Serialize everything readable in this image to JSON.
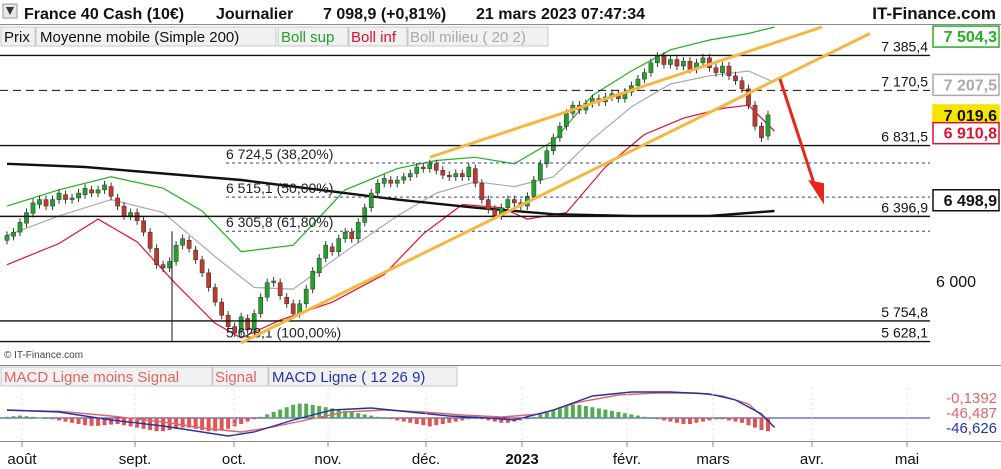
{
  "header": {
    "instrument": "France 40 Cash (10€)",
    "period": "Journalier",
    "quote": "7 098,9 (+0,81%)",
    "datetime": "21 mars 2023 07:47:34",
    "brand": "IT-Finance.com"
  },
  "legend": {
    "price": "Prix",
    "ma": "Moyenne mobile (Simple 200)",
    "boll_sup": "Boll sup",
    "boll_inf": "Boll inf",
    "boll_mid": "Boll milieu ( 20 2)"
  },
  "copyright": "© IT-Finance.com",
  "macd_legend": {
    "histogram": "MACD Ligne moins Signal",
    "signal": "Signal",
    "line": "MACD Ligne ( 12 26 9)"
  },
  "colors": {
    "candle_up": "#22a22a",
    "candle_down": "#c0392b",
    "ma200": "#111111",
    "boll_sup": "#22b022",
    "boll_inf": "#e01030",
    "boll_mid": "#aaaaaa",
    "trend_channel": "#f5b642",
    "arrow": "#e8261a",
    "macd_line": "#2233aa",
    "macd_signal": "#e06666"
  },
  "chart_data": {
    "type": "candlestick",
    "x_axis_labels": [
      "août",
      "sept.",
      "oct.",
      "nov.",
      "déc.",
      "2023",
      "févr.",
      "mars",
      "avr.",
      "mai"
    ],
    "y_axis": {
      "ticks": [
        "6 000"
      ],
      "range": [
        5570,
        7560
      ]
    },
    "price_levels": [
      {
        "value": 7385.4,
        "label": "7 385,4",
        "style": "solid"
      },
      {
        "value": 7170.5,
        "label": "7 170,5",
        "style": "dashed"
      },
      {
        "value": 6831.5,
        "label": "6 831,5",
        "style": "solid"
      },
      {
        "value": 6396.9,
        "label": "6 396,9",
        "style": "solid"
      },
      {
        "value": 5754.8,
        "label": "5 754,8",
        "style": "solid"
      },
      {
        "value": 5628.1,
        "label": "5 628,1",
        "style": "solid"
      }
    ],
    "fibonacci": [
      {
        "value": 6724.5,
        "label": "6 724,5 (38,20%)"
      },
      {
        "value": 6515.1,
        "label": "6 515,1 (50,00%)"
      },
      {
        "value": 6305.8,
        "label": "6 305,8 (61,80%)"
      },
      {
        "value": 5628.1,
        "label": "5 628,1 (100,00%)"
      }
    ],
    "right_boxes": [
      {
        "value": 7504.3,
        "label": "7 504,3",
        "series": "Boll sup"
      },
      {
        "value": 7207.5,
        "label": "7 207,5",
        "series": "Boll milieu"
      },
      {
        "value": 7019.6,
        "label": "7 019,6",
        "series": "Prix"
      },
      {
        "value": 6910.8,
        "label": "6 910,8",
        "series": "Boll inf"
      },
      {
        "value": 6498.9,
        "label": "6 498,9",
        "series": "Moyenne mobile"
      }
    ],
    "macd_boxes": [
      {
        "label": "-0,1392",
        "series": "MACD Ligne moins Signal"
      },
      {
        "label": "-46,487",
        "series": "Signal"
      },
      {
        "label": "-46,626",
        "series": "MACD Ligne"
      }
    ],
    "candles": [
      {
        "o": 6250,
        "c": 6280
      },
      {
        "o": 6275,
        "c": 6300
      },
      {
        "o": 6300,
        "c": 6360
      },
      {
        "o": 6355,
        "c": 6420
      },
      {
        "o": 6415,
        "c": 6480
      },
      {
        "o": 6470,
        "c": 6500
      },
      {
        "o": 6500,
        "c": 6460
      },
      {
        "o": 6460,
        "c": 6500
      },
      {
        "o": 6500,
        "c": 6540
      },
      {
        "o": 6530,
        "c": 6500
      },
      {
        "o": 6500,
        "c": 6510
      },
      {
        "o": 6510,
        "c": 6540
      },
      {
        "o": 6530,
        "c": 6570
      },
      {
        "o": 6560,
        "c": 6540
      },
      {
        "o": 6540,
        "c": 6560
      },
      {
        "o": 6560,
        "c": 6590
      },
      {
        "o": 6580,
        "c": 6520
      },
      {
        "o": 6510,
        "c": 6460
      },
      {
        "o": 6460,
        "c": 6400
      },
      {
        "o": 6400,
        "c": 6420
      },
      {
        "o": 6420,
        "c": 6370
      },
      {
        "o": 6370,
        "c": 6300
      },
      {
        "o": 6300,
        "c": 6200
      },
      {
        "o": 6200,
        "c": 6100
      },
      {
        "o": 6100,
        "c": 6080
      },
      {
        "o": 6080,
        "c": 6120
      },
      {
        "o": 6120,
        "c": 6220
      },
      {
        "o": 6220,
        "c": 6260
      },
      {
        "o": 6250,
        "c": 6200
      },
      {
        "o": 6190,
        "c": 6130
      },
      {
        "o": 6130,
        "c": 6050
      },
      {
        "o": 6050,
        "c": 5960
      },
      {
        "o": 5960,
        "c": 5870
      },
      {
        "o": 5870,
        "c": 5790
      },
      {
        "o": 5790,
        "c": 5720
      },
      {
        "o": 5720,
        "c": 5680
      },
      {
        "o": 5690,
        "c": 5780
      },
      {
        "o": 5770,
        "c": 5700
      },
      {
        "o": 5700,
        "c": 5800
      },
      {
        "o": 5800,
        "c": 5900
      },
      {
        "o": 5900,
        "c": 5990
      },
      {
        "o": 5990,
        "c": 6000
      },
      {
        "o": 5990,
        "c": 5910
      },
      {
        "o": 5900,
        "c": 5860
      },
      {
        "o": 5860,
        "c": 5800
      },
      {
        "o": 5800,
        "c": 5860
      },
      {
        "o": 5860,
        "c": 5950
      },
      {
        "o": 5950,
        "c": 6060
      },
      {
        "o": 6050,
        "c": 6140
      },
      {
        "o": 6140,
        "c": 6220
      },
      {
        "o": 6210,
        "c": 6180
      },
      {
        "o": 6180,
        "c": 6260
      },
      {
        "o": 6260,
        "c": 6300
      },
      {
        "o": 6300,
        "c": 6260
      },
      {
        "o": 6260,
        "c": 6360
      },
      {
        "o": 6360,
        "c": 6450
      },
      {
        "o": 6450,
        "c": 6540
      },
      {
        "o": 6540,
        "c": 6600
      },
      {
        "o": 6600,
        "c": 6630
      },
      {
        "o": 6620,
        "c": 6600
      },
      {
        "o": 6600,
        "c": 6620
      },
      {
        "o": 6620,
        "c": 6640
      },
      {
        "o": 6640,
        "c": 6660
      },
      {
        "o": 6660,
        "c": 6700
      },
      {
        "o": 6700,
        "c": 6690
      },
      {
        "o": 6690,
        "c": 6720
      },
      {
        "o": 6720,
        "c": 6680
      },
      {
        "o": 6680,
        "c": 6650
      },
      {
        "o": 6650,
        "c": 6640
      },
      {
        "o": 6640,
        "c": 6660
      },
      {
        "o": 6660,
        "c": 6640
      },
      {
        "o": 6640,
        "c": 6700
      },
      {
        "o": 6690,
        "c": 6600
      },
      {
        "o": 6600,
        "c": 6500
      },
      {
        "o": 6500,
        "c": 6440
      },
      {
        "o": 6440,
        "c": 6400
      },
      {
        "o": 6400,
        "c": 6450
      },
      {
        "o": 6450,
        "c": 6500
      },
      {
        "o": 6500,
        "c": 6480
      },
      {
        "o": 6480,
        "c": 6460
      },
      {
        "o": 6460,
        "c": 6520
      },
      {
        "o": 6520,
        "c": 6620
      },
      {
        "o": 6620,
        "c": 6720
      },
      {
        "o": 6720,
        "c": 6800
      },
      {
        "o": 6800,
        "c": 6880
      },
      {
        "o": 6880,
        "c": 6950
      },
      {
        "o": 6950,
        "c": 7030
      },
      {
        "o": 7030,
        "c": 7080
      },
      {
        "o": 7080,
        "c": 7050
      },
      {
        "o": 7050,
        "c": 7090
      },
      {
        "o": 7090,
        "c": 7120
      },
      {
        "o": 7120,
        "c": 7100
      },
      {
        "o": 7100,
        "c": 7130
      },
      {
        "o": 7130,
        "c": 7150
      },
      {
        "o": 7150,
        "c": 7120
      },
      {
        "o": 7120,
        "c": 7160
      },
      {
        "o": 7160,
        "c": 7200
      },
      {
        "o": 7200,
        "c": 7240
      },
      {
        "o": 7240,
        "c": 7280
      },
      {
        "o": 7280,
        "c": 7340
      },
      {
        "o": 7340,
        "c": 7380
      },
      {
        "o": 7380,
        "c": 7330
      },
      {
        "o": 7330,
        "c": 7360
      },
      {
        "o": 7360,
        "c": 7320
      },
      {
        "o": 7320,
        "c": 7350
      },
      {
        "o": 7350,
        "c": 7300
      },
      {
        "o": 7300,
        "c": 7340
      },
      {
        "o": 7340,
        "c": 7370
      },
      {
        "o": 7370,
        "c": 7310
      },
      {
        "o": 7310,
        "c": 7280
      },
      {
        "o": 7280,
        "c": 7320
      },
      {
        "o": 7320,
        "c": 7260
      },
      {
        "o": 7260,
        "c": 7230
      },
      {
        "o": 7230,
        "c": 7180
      },
      {
        "o": 7180,
        "c": 7080
      },
      {
        "o": 7080,
        "c": 6950
      },
      {
        "o": 6950,
        "c": 6880
      },
      {
        "o": 6890,
        "c": 7020
      }
    ],
    "ma200": [
      [
        0,
        6720
      ],
      [
        12,
        6700
      ],
      [
        24,
        6660
      ],
      [
        36,
        6620
      ],
      [
        48,
        6560
      ],
      [
        60,
        6500
      ],
      [
        72,
        6450
      ],
      [
        84,
        6410
      ],
      [
        96,
        6400
      ],
      [
        108,
        6400
      ],
      [
        118,
        6430
      ]
    ],
    "boll_sup": [
      [
        0,
        6460
      ],
      [
        8,
        6560
      ],
      [
        16,
        6640
      ],
      [
        24,
        6570
      ],
      [
        30,
        6430
      ],
      [
        36,
        6180
      ],
      [
        44,
        6220
      ],
      [
        52,
        6560
      ],
      [
        60,
        6690
      ],
      [
        66,
        6740
      ],
      [
        72,
        6760
      ],
      [
        78,
        6720
      ],
      [
        84,
        6860
      ],
      [
        90,
        7140
      ],
      [
        96,
        7290
      ],
      [
        102,
        7420
      ],
      [
        108,
        7480
      ],
      [
        114,
        7520
      ],
      [
        118,
        7560
      ]
    ],
    "boll_inf": [
      [
        0,
        6100
      ],
      [
        8,
        6230
      ],
      [
        14,
        6380
      ],
      [
        20,
        6240
      ],
      [
        26,
        5980
      ],
      [
        32,
        5740
      ],
      [
        36,
        5650
      ],
      [
        42,
        5760
      ],
      [
        50,
        5870
      ],
      [
        58,
        6040
      ],
      [
        64,
        6290
      ],
      [
        70,
        6470
      ],
      [
        76,
        6450
      ],
      [
        80,
        6380
      ],
      [
        86,
        6420
      ],
      [
        92,
        6700
      ],
      [
        98,
        6900
      ],
      [
        104,
        7000
      ],
      [
        110,
        7060
      ],
      [
        114,
        7080
      ],
      [
        118,
        6920
      ]
    ],
    "boll_mid": [
      [
        0,
        6280
      ],
      [
        8,
        6400
      ],
      [
        16,
        6500
      ],
      [
        24,
        6420
      ],
      [
        32,
        6150
      ],
      [
        38,
        5960
      ],
      [
        44,
        5950
      ],
      [
        52,
        6180
      ],
      [
        60,
        6400
      ],
      [
        66,
        6540
      ],
      [
        72,
        6610
      ],
      [
        78,
        6580
      ],
      [
        84,
        6640
      ],
      [
        90,
        6870
      ],
      [
        96,
        7070
      ],
      [
        102,
        7210
      ],
      [
        108,
        7260
      ],
      [
        114,
        7290
      ],
      [
        118,
        7220
      ]
    ],
    "macd_histogram": [
      2,
      3,
      4,
      3,
      2,
      1,
      0,
      -2,
      -4,
      -6,
      -8,
      -10,
      -12,
      -13,
      -13,
      -12,
      -11,
      -10,
      -12,
      -14,
      -16,
      -18,
      -20,
      -22,
      -22,
      -20,
      -18,
      -16,
      -16,
      -18,
      -20,
      -22,
      -22,
      -20,
      -18,
      -14,
      -10,
      -6,
      -2,
      2,
      6,
      10,
      14,
      18,
      22,
      24,
      24,
      22,
      20,
      18,
      16,
      14,
      12,
      10,
      8,
      6,
      4,
      2,
      0,
      -2,
      -4,
      -6,
      -8,
      -10,
      -12,
      -14,
      -12,
      -10,
      -8,
      -6,
      -4,
      -2,
      0,
      -2,
      -4,
      -6,
      -8,
      -8,
      -6,
      -4,
      -2,
      2,
      6,
      10,
      14,
      18,
      20,
      22,
      22,
      20,
      18,
      16,
      14,
      12,
      10,
      8,
      6,
      4,
      2,
      0,
      -2,
      -4,
      -6,
      -8,
      -10,
      -10,
      -8,
      -6,
      -4,
      -2,
      -2,
      -4,
      -6,
      -8,
      -12,
      -16,
      -20,
      -22,
      -18
    ],
    "macd_line": [
      [
        0,
        40
      ],
      [
        8,
        30
      ],
      [
        16,
        -10
      ],
      [
        24,
        -40
      ],
      [
        30,
        -70
      ],
      [
        34,
        -90
      ],
      [
        38,
        -70
      ],
      [
        44,
        -10
      ],
      [
        50,
        40
      ],
      [
        56,
        50
      ],
      [
        62,
        30
      ],
      [
        68,
        10
      ],
      [
        74,
        0
      ],
      [
        78,
        -10
      ],
      [
        84,
        40
      ],
      [
        90,
        110
      ],
      [
        96,
        130
      ],
      [
        102,
        130
      ],
      [
        108,
        120
      ],
      [
        112,
        90
      ],
      [
        116,
        20
      ],
      [
        118,
        -47
      ]
    ],
    "macd_signal": [
      [
        0,
        38
      ],
      [
        8,
        34
      ],
      [
        16,
        10
      ],
      [
        24,
        -20
      ],
      [
        30,
        -50
      ],
      [
        36,
        -70
      ],
      [
        40,
        -50
      ],
      [
        46,
        -10
      ],
      [
        52,
        30
      ],
      [
        58,
        40
      ],
      [
        64,
        30
      ],
      [
        70,
        15
      ],
      [
        76,
        5
      ],
      [
        82,
        20
      ],
      [
        88,
        80
      ],
      [
        94,
        115
      ],
      [
        100,
        125
      ],
      [
        106,
        125
      ],
      [
        110,
        110
      ],
      [
        114,
        70
      ],
      [
        118,
        -46
      ]
    ]
  }
}
